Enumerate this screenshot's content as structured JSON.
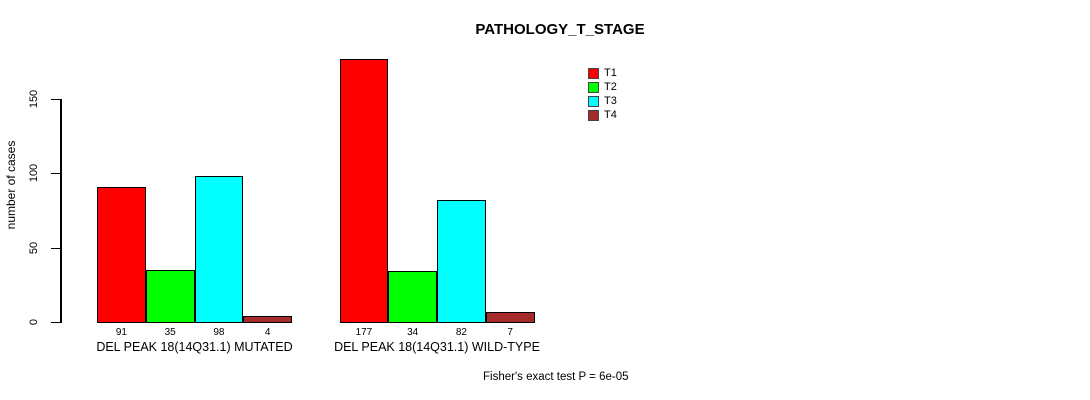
{
  "chart_data": {
    "type": "bar",
    "title": "PATHOLOGY_T_STAGE",
    "ylabel": "number of cases",
    "yticks": [
      0,
      50,
      100,
      150
    ],
    "ylim": [
      0,
      185
    ],
    "grid": false,
    "legend_position": "top-right",
    "categories": [
      "DEL PEAK 18(14Q31.1) MUTATED",
      "DEL PEAK 18(14Q31.1) WILD-TYPE"
    ],
    "series": [
      {
        "name": "T1",
        "color": "#FF0000",
        "values": [
          91,
          177
        ]
      },
      {
        "name": "T2",
        "color": "#00FF00",
        "values": [
          35,
          34
        ]
      },
      {
        "name": "T3",
        "color": "#00FFFF",
        "values": [
          98,
          82
        ]
      },
      {
        "name": "T4",
        "color": "#A52A2A",
        "values": [
          4,
          7
        ]
      }
    ],
    "bar_value_labels": [
      [
        "91",
        "35",
        "98",
        "4"
      ],
      [
        "177",
        "34",
        "82",
        "7"
      ]
    ],
    "annotation": "Fisher's exact test P = 6e-05"
  }
}
